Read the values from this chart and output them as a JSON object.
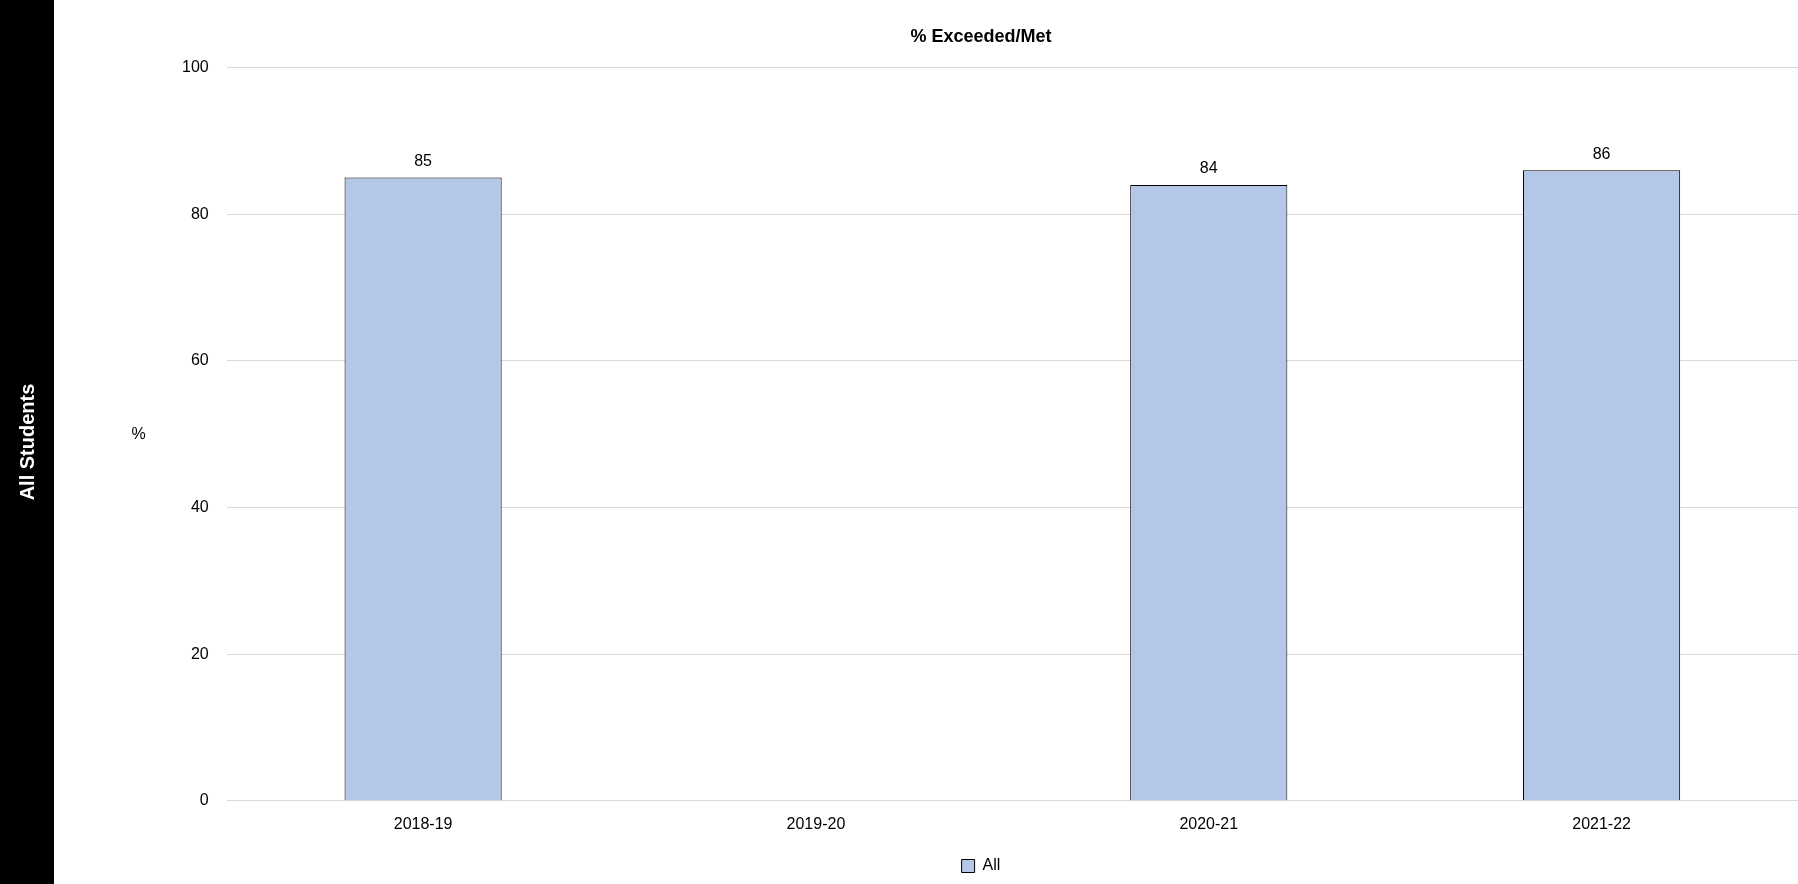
{
  "chart_data": {
    "type": "bar",
    "title": "% Exceeded/Met",
    "ylabel": "%",
    "categories": [
      "2018-19",
      "2019-20",
      "2020-21",
      "2021-22"
    ],
    "series": [
      {
        "name": "All",
        "color": "#b4c7e7",
        "values": [
          85,
          null,
          84,
          86
        ]
      }
    ],
    "ylim": [
      0,
      100
    ],
    "yticks": [
      0,
      20,
      40,
      60,
      80,
      100
    ],
    "grid": "y",
    "legend": "bottom",
    "data_labels": true,
    "annotations": [
      "All Students"
    ]
  }
}
